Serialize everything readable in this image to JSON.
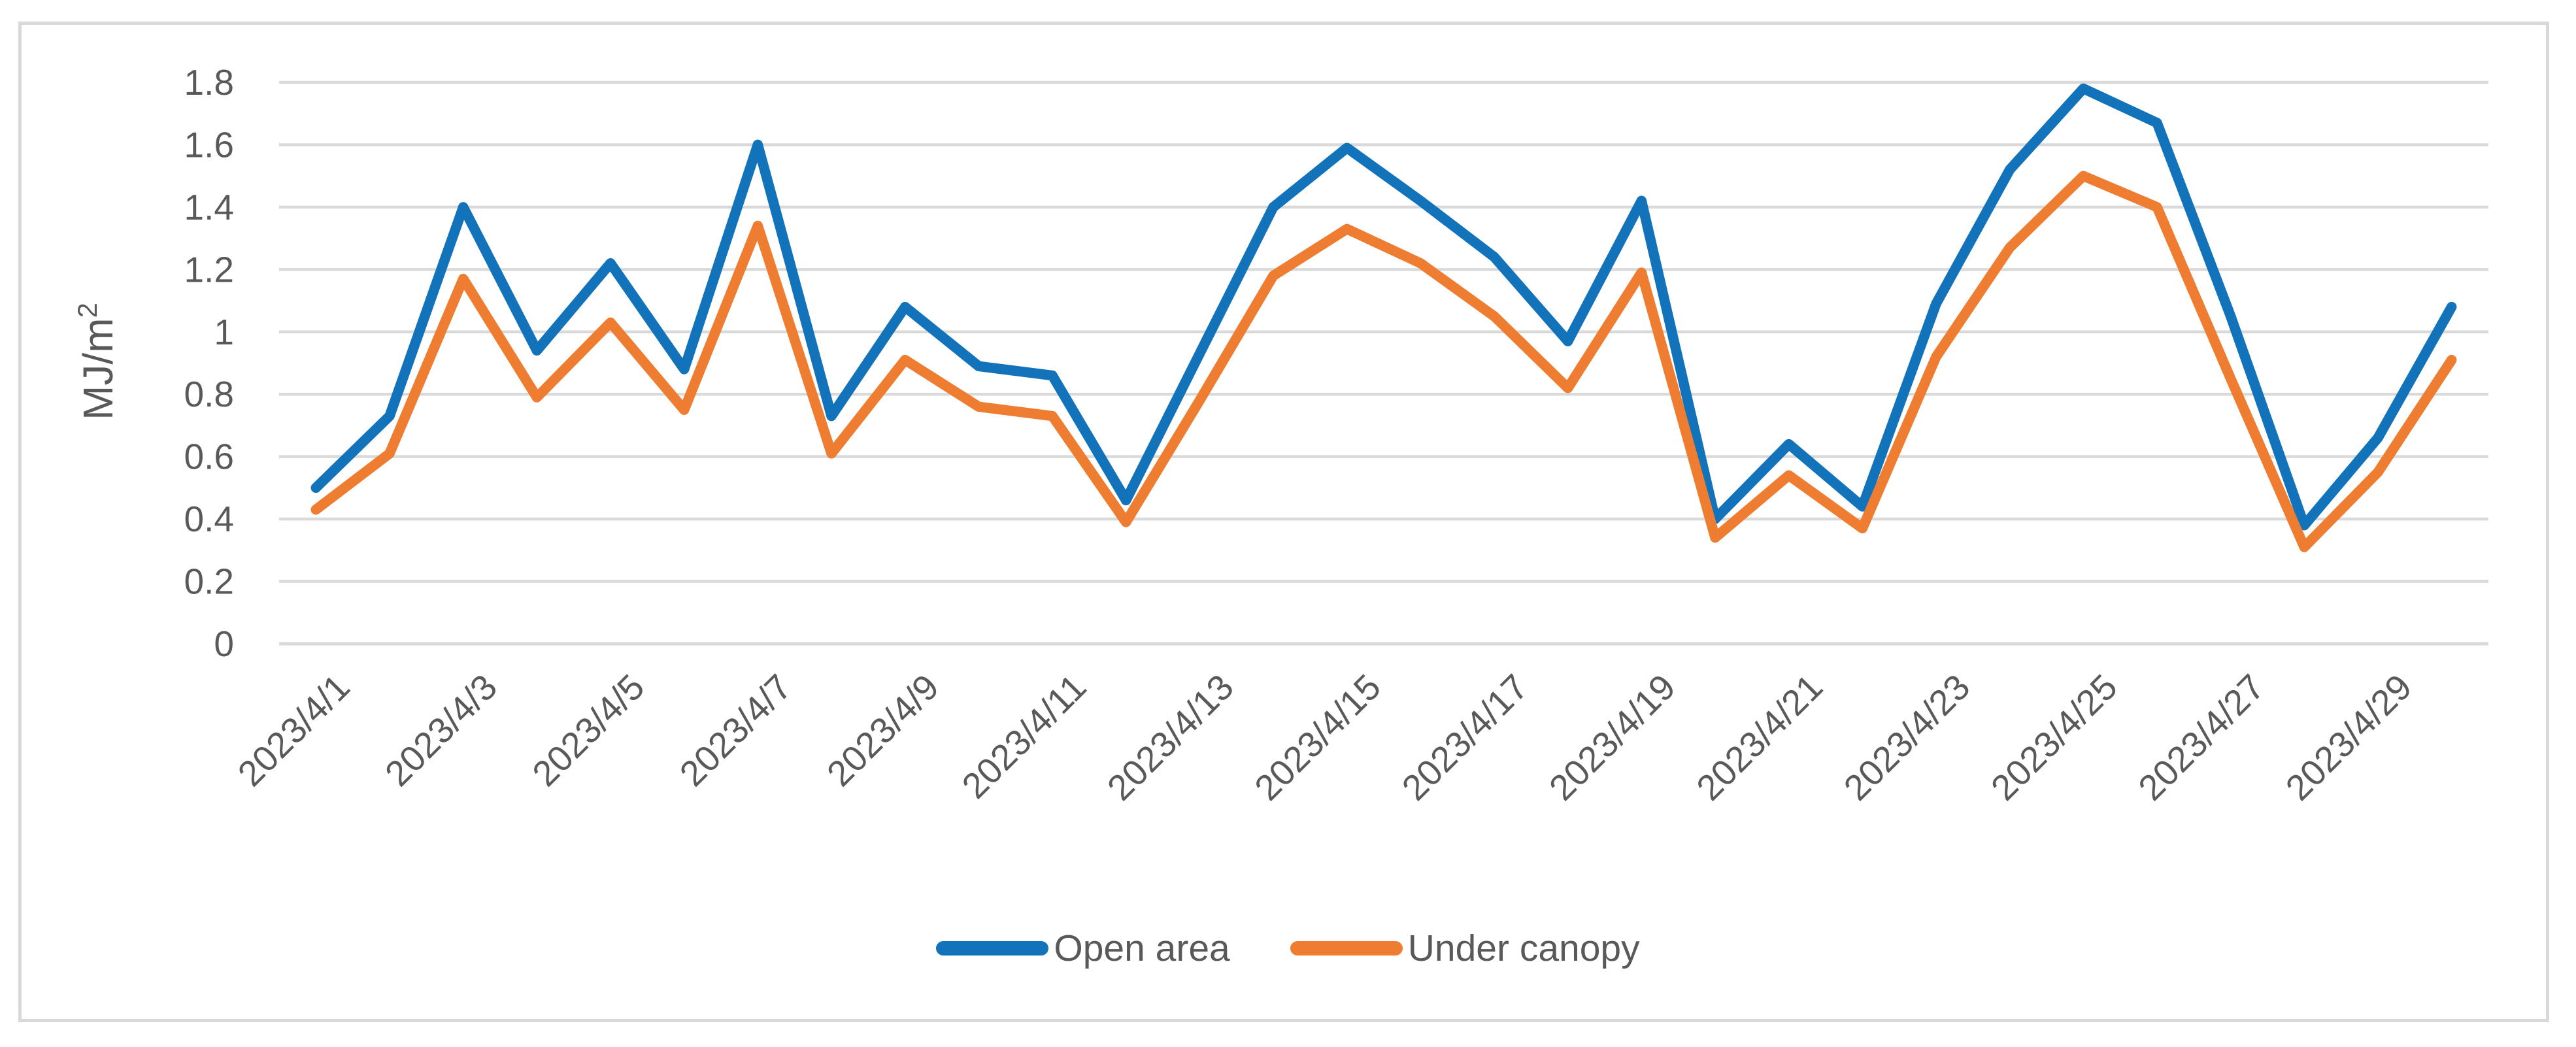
{
  "chart_data": {
    "type": "line",
    "title": "",
    "xlabel": "",
    "ylabel": "MJ/m²",
    "ylabel_base": "MJ/m",
    "ylabel_sup": "2",
    "ylim": [
      0,
      1.8
    ],
    "y_tick_step": 0.2,
    "y_tick_labels": [
      "0",
      "0.2",
      "0.4",
      "0.6",
      "0.8",
      "1",
      "1.2",
      "1.4",
      "1.6",
      "1.8"
    ],
    "grid": true,
    "legend_position": "bottom-center",
    "x_tick_every": 2,
    "x_tick_labels": [
      "2023/4/1",
      "2023/4/3",
      "2023/4/5",
      "2023/4/7",
      "2023/4/9",
      "2023/4/11",
      "2023/4/13",
      "2023/4/15",
      "2023/4/17",
      "2023/4/19",
      "2023/4/21",
      "2023/4/23",
      "2023/4/25",
      "2023/4/27",
      "2023/4/29"
    ],
    "categories": [
      "2023/4/1",
      "2023/4/2",
      "2023/4/3",
      "2023/4/4",
      "2023/4/5",
      "2023/4/6",
      "2023/4/7",
      "2023/4/8",
      "2023/4/9",
      "2023/4/10",
      "2023/4/11",
      "2023/4/12",
      "2023/4/13",
      "2023/4/14",
      "2023/4/15",
      "2023/4/16",
      "2023/4/17",
      "2023/4/18",
      "2023/4/19",
      "2023/4/20",
      "2023/4/21",
      "2023/4/22",
      "2023/4/23",
      "2023/4/24",
      "2023/4/25",
      "2023/4/26",
      "2023/4/27",
      "2023/4/28",
      "2023/4/29",
      "2023/4/30"
    ],
    "series": [
      {
        "name": "Open area",
        "color": "#1272BA",
        "values": [
          0.5,
          0.73,
          1.4,
          0.94,
          1.22,
          0.88,
          1.6,
          0.73,
          1.08,
          0.89,
          0.86,
          0.46,
          0.93,
          1.4,
          1.59,
          1.42,
          1.24,
          0.97,
          1.42,
          0.4,
          0.64,
          0.44,
          1.09,
          1.52,
          1.78,
          1.67,
          1.05,
          0.38,
          0.66,
          1.08
        ]
      },
      {
        "name": "Under canopy",
        "color": "#EE7D31",
        "values": [
          0.43,
          0.61,
          1.17,
          0.79,
          1.03,
          0.75,
          1.34,
          0.61,
          0.91,
          0.76,
          0.73,
          0.39,
          0.78,
          1.18,
          1.33,
          1.22,
          1.05,
          0.82,
          1.19,
          0.34,
          0.54,
          0.37,
          0.92,
          1.27,
          1.5,
          1.4,
          0.85,
          0.31,
          0.55,
          0.91
        ]
      }
    ]
  },
  "style": {
    "axis_text_color": "#595959",
    "gridline_color": "#D9D9D9",
    "frame_border_color": "#D9D9D9",
    "background_color": "#FFFFFF"
  }
}
